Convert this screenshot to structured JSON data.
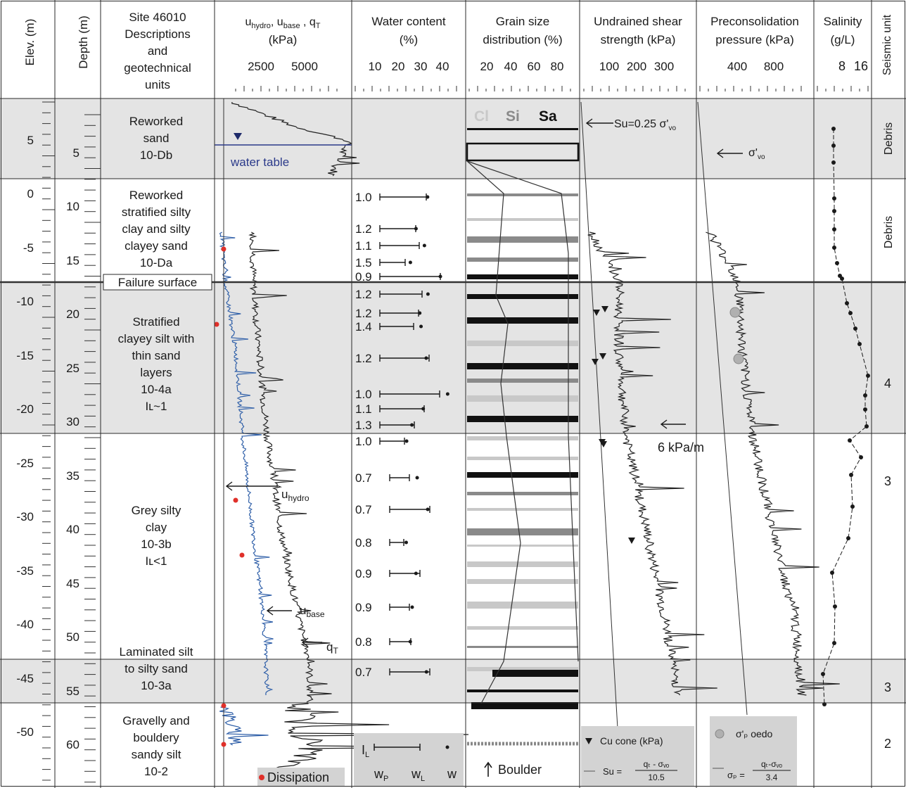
{
  "columns": {
    "elev": "Elev. (m)",
    "depth": "Depth (m)",
    "desc": [
      "Site 46010",
      "Descriptions",
      "and",
      "geotechnical",
      "units"
    ],
    "cpt_title_parts": [
      "u",
      "hydro",
      ", u",
      "base",
      " , q",
      "T"
    ],
    "cpt_unit": "(kPa)",
    "cpt_ticks": [
      "2500",
      "5000"
    ],
    "water_title": [
      "Water content",
      "(%)"
    ],
    "water_ticks": [
      "10",
      "20",
      "30",
      "40"
    ],
    "grain_title": [
      "Grain size",
      "distribution (%)"
    ],
    "grain_ticks": [
      "20",
      "40",
      "60",
      "80"
    ],
    "su_title": [
      "Undrained shear",
      "strength (kPa)"
    ],
    "su_ticks": [
      "100",
      "200",
      "300"
    ],
    "pc_title": [
      "Preconsolidation",
      "pressure  (kPa)"
    ],
    "pc_ticks": [
      "400",
      "800"
    ],
    "sal_title": [
      "Salinity",
      "(g/L)"
    ],
    "sal_ticks": [
      "8",
      "16"
    ],
    "seismic_title": "Seismic unit"
  },
  "elev_ticks": [
    "5",
    "0",
    "-5",
    "-10",
    "-15",
    "-20",
    "-25",
    "-30",
    "-35",
    "-40",
    "-45",
    "-50"
  ],
  "depth_ticks": [
    "5",
    "10",
    "15",
    "20",
    "25",
    "30",
    "35",
    "40",
    "45",
    "50",
    "55",
    "60"
  ],
  "units": [
    {
      "lines": [
        "Reworked",
        "sand",
        "10-Db"
      ]
    },
    {
      "lines": [
        "Reworked",
        "stratified silty",
        "clay and silty",
        "clayey sand",
        "10-Da"
      ]
    },
    {
      "lines": [
        "Stratified",
        "clayey silt with",
        "thin sand",
        "layers",
        "10-4a",
        "Iʟ~1"
      ]
    },
    {
      "lines": [
        "Grey silty",
        "clay",
        "10-3b",
        "Iʟ<1"
      ]
    },
    {
      "lines": [
        "Laminated silt",
        "to silty sand",
        "10-3a"
      ]
    },
    {
      "lines": [
        "Gravelly and",
        "bouldery",
        "sandy silt",
        "10-2"
      ]
    }
  ],
  "failure_surface": "Failure surface",
  "seismic": [
    "Debris",
    "Debris",
    "4",
    "3",
    "3",
    "2"
  ],
  "cpt_labels": {
    "water_table": "water table",
    "u_hydro": "u",
    "u_hydro_sub": "hydro",
    "u_base": "u",
    "u_base_sub": "base",
    "q_t": "q",
    "q_t_sub": "T",
    "dissipation": "Dissipation"
  },
  "liquidity_index": [
    "1.0",
    "1.2",
    "1.1",
    "1.5",
    "0.9",
    "1.2",
    "1.2",
    "1.4",
    "1.2",
    "1.0",
    "1.1",
    "1.3",
    "1.0",
    "0.7",
    "0.7",
    "0.8",
    "0.9",
    "0.9",
    "0.8",
    "0.7"
  ],
  "water_legend": {
    "il": "I",
    "il_sub": "L",
    "wp": "w",
    "wp_sub": "P",
    "wl": "w",
    "wl_sub": "L",
    "w": "w"
  },
  "grain_legend": {
    "cl": "Cl",
    "si": "Si",
    "sa": "Sa",
    "boulder": "Boulder"
  },
  "su_labels": {
    "su_ratio": "Su=0.25 σ'",
    "su_ratio_sub": "vo",
    "gradient": "6 kPa/m",
    "legend_cone": "Cu  cone (kPa)",
    "legend_formula_lhs": "Su =",
    "legend_formula_num": "qₜ - σᵥₒ",
    "legend_formula_den": "10.5"
  },
  "pc_labels": {
    "sigma_vo": "σ'",
    "sigma_vo_sub": "vo",
    "legend_oedo": "σ'ₚ oedo",
    "legend_formula_lhs": "σₚ =",
    "legend_formula_num": "qₜ-σᵥₒ",
    "legend_formula_den": "3.4"
  },
  "colors": {
    "grid": "#2a2a2a",
    "band": "#e4e4e4",
    "cpt_blue": "#2f5fa8",
    "dissipation_red": "#e0302a",
    "legend_bg": "#d3d3d3",
    "clay": "#c8c8c8",
    "silt": "#8a8a8a",
    "sand": "#111111"
  }
}
